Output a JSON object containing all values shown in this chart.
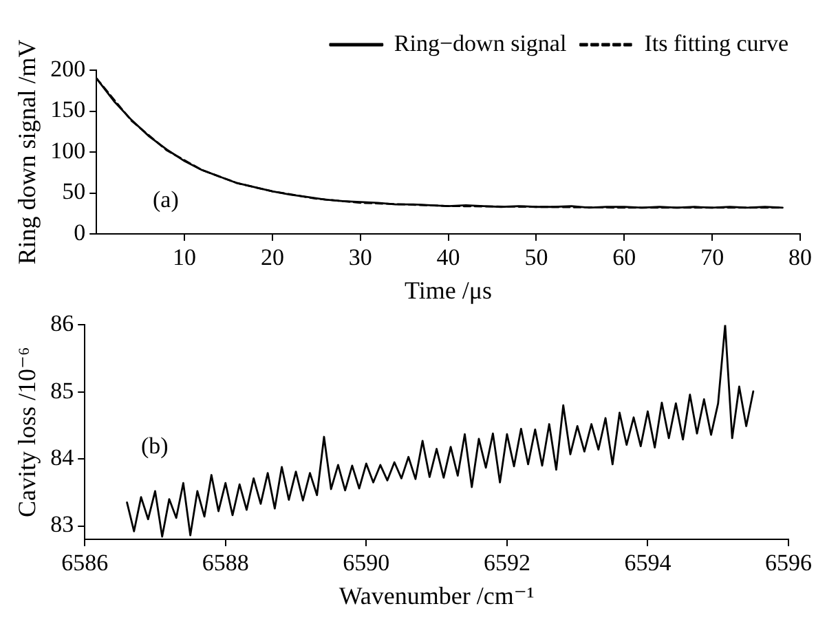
{
  "chart_data": [
    {
      "type": "line",
      "xlabel": "Time /μs",
      "ylabel": "Ring down signal /mV",
      "annotations": [
        "(a)"
      ],
      "xlim": [
        0,
        80
      ],
      "xticks": [
        10,
        20,
        30,
        40,
        50,
        60,
        70,
        80
      ],
      "ylim": [
        0,
        200
      ],
      "yticks": [
        0,
        50,
        100,
        150,
        200
      ],
      "grid": false,
      "legend": "top right",
      "marker": "none",
      "series": [
        {
          "name": "Ring−down signal",
          "color": "#000000",
          "line_style": "solid",
          "x": [
            0,
            2,
            4,
            6,
            8,
            10,
            12,
            14,
            16,
            18,
            20,
            22,
            24,
            26,
            28,
            30,
            32,
            34,
            36,
            38,
            40,
            42,
            44,
            46,
            48,
            50,
            52,
            54,
            56,
            58,
            60,
            62,
            64,
            66,
            68,
            70,
            72,
            74,
            76,
            78
          ],
          "values": [
            190,
            162,
            139,
            119,
            103,
            89,
            78,
            70,
            62,
            57,
            52,
            48,
            45,
            42,
            40,
            39,
            38,
            36,
            36,
            35,
            34,
            35,
            34,
            33,
            34,
            33,
            33,
            34,
            32,
            33,
            33,
            32,
            33,
            32,
            33,
            32,
            33,
            32,
            33,
            32
          ]
        },
        {
          "name": "Its fitting curve",
          "color": "#000000",
          "line_style": "dashed",
          "x": [
            0,
            4,
            8,
            12,
            16,
            20,
            25,
            30,
            40,
            50,
            60,
            70,
            78
          ],
          "values": [
            190,
            138,
            102,
            78,
            62,
            52,
            43,
            38,
            34,
            33,
            32,
            32,
            32
          ]
        }
      ]
    },
    {
      "type": "line",
      "xlabel": "Wavenumber /cm⁻¹",
      "ylabel": "Cavity loss /10⁻⁶",
      "annotations": [
        "(b)"
      ],
      "xlim": [
        6586,
        6596
      ],
      "xticks": [
        6586,
        6588,
        6590,
        6592,
        6594,
        6596
      ],
      "ylim": [
        82.8,
        86
      ],
      "yticks": [
        83,
        84,
        85,
        86
      ],
      "grid": false,
      "marker": "none",
      "series": [
        {
          "color": "#000000",
          "line_style": "solid",
          "x": [
            6586.6,
            6586.7,
            6586.8,
            6586.9,
            6587.0,
            6587.1,
            6587.2,
            6587.3,
            6587.4,
            6587.5,
            6587.6,
            6587.7,
            6587.8,
            6587.9,
            6588.0,
            6588.1,
            6588.2,
            6588.3,
            6588.4,
            6588.5,
            6588.6,
            6588.7,
            6588.8,
            6588.9,
            6589.0,
            6589.1,
            6589.2,
            6589.3,
            6589.4,
            6589.5,
            6589.6,
            6589.7,
            6589.8,
            6589.9,
            6590.0,
            6590.1,
            6590.2,
            6590.3,
            6590.4,
            6590.5,
            6590.6,
            6590.7,
            6590.8,
            6590.9,
            6591.0,
            6591.1,
            6591.2,
            6591.3,
            6591.4,
            6591.5,
            6591.6,
            6591.7,
            6591.8,
            6591.9,
            6592.0,
            6592.1,
            6592.2,
            6592.3,
            6592.4,
            6592.5,
            6592.6,
            6592.7,
            6592.8,
            6592.9,
            6593.0,
            6593.1,
            6593.2,
            6593.3,
            6593.4,
            6593.5,
            6593.6,
            6593.7,
            6593.8,
            6593.9,
            6594.0,
            6594.1,
            6594.2,
            6594.3,
            6594.4,
            6594.5,
            6594.6,
            6594.7,
            6594.8,
            6594.9,
            6595.0,
            6595.1,
            6595.2,
            6595.3,
            6595.4,
            6595.5
          ],
          "values": [
            83.35,
            82.92,
            83.43,
            83.1,
            83.52,
            82.84,
            83.4,
            83.12,
            83.64,
            82.86,
            83.52,
            83.14,
            83.76,
            83.22,
            83.64,
            83.16,
            83.62,
            83.24,
            83.71,
            83.33,
            83.79,
            83.26,
            83.88,
            83.39,
            83.81,
            83.38,
            83.79,
            83.46,
            84.33,
            83.55,
            83.91,
            83.53,
            83.9,
            83.56,
            83.93,
            83.65,
            83.91,
            83.68,
            83.95,
            83.71,
            84.03,
            83.7,
            84.27,
            83.73,
            84.15,
            83.72,
            84.18,
            83.75,
            84.37,
            83.58,
            84.3,
            83.87,
            84.38,
            83.65,
            84.37,
            83.89,
            84.45,
            83.92,
            84.44,
            83.9,
            84.52,
            83.84,
            84.8,
            84.07,
            84.49,
            84.11,
            84.52,
            84.14,
            84.61,
            83.92,
            84.69,
            84.21,
            84.62,
            84.19,
            84.71,
            84.17,
            84.84,
            84.31,
            84.83,
            84.29,
            84.96,
            84.38,
            84.89,
            84.36,
            84.83,
            86.0,
            84.31,
            85.08,
            84.49,
            85.01
          ]
        }
      ]
    }
  ]
}
